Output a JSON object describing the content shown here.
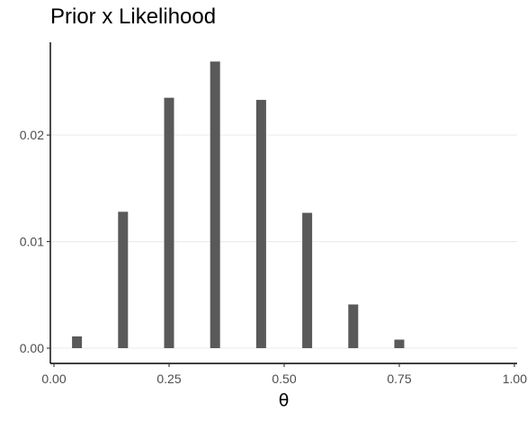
{
  "chart_data": {
    "type": "bar",
    "title": "Prior x Likelihood",
    "xlabel": "θ",
    "ylabel": "",
    "x": [
      0.05,
      0.15,
      0.25,
      0.35,
      0.45,
      0.55,
      0.65,
      0.75,
      0.85,
      0.95
    ],
    "values": [
      0.0011,
      0.0128,
      0.0235,
      0.0269,
      0.0233,
      0.0127,
      0.0041,
      0.0008,
      0.0,
      0.0
    ],
    "xlim": [
      0.0,
      1.0
    ],
    "ylim": [
      0.0,
      0.0282
    ],
    "xticks": [
      0.0,
      0.25,
      0.5,
      0.75,
      1.0
    ],
    "xtick_labels": [
      "0.00",
      "0.25",
      "0.50",
      "0.75",
      "1.00"
    ],
    "yticks": [
      0.0,
      0.01,
      0.02
    ],
    "ytick_labels": [
      "0.00",
      "0.01",
      "0.02"
    ],
    "bar_color": "#595959",
    "grid": "horizontal major lines",
    "legend": "none"
  }
}
